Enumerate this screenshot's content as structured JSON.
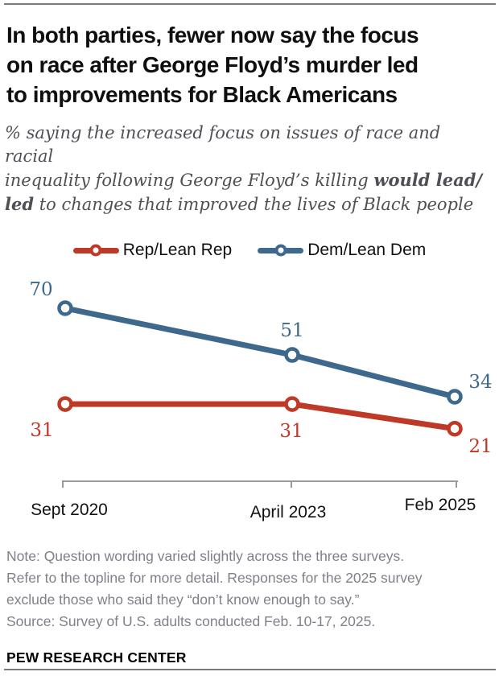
{
  "header": {
    "title_lines": [
      "In both parties, fewer now say the focus",
      "on race after George Floyd’s murder led",
      "to improvements for Black Americans"
    ],
    "subtitle_lines": [
      {
        "segments": [
          {
            "text": "% saying the increased focus on issues of race and racial",
            "bold": false
          }
        ]
      },
      {
        "segments": [
          {
            "text": "inequality following George Floyd’s killing ",
            "bold": false
          },
          {
            "text": "would lead/",
            "bold": true
          }
        ]
      },
      {
        "segments": [
          {
            "text": "led",
            "bold": true
          },
          {
            "text": " to changes that improved the lives of Black people",
            "bold": false
          }
        ]
      }
    ]
  },
  "legend": {
    "items": [
      {
        "label": "Rep/Lean Rep",
        "color": "#bf3927"
      },
      {
        "label": "Dem/Lean Dem",
        "color": "#3e698c"
      }
    ]
  },
  "chart_data": {
    "type": "line",
    "categories": [
      "Sept 2020",
      "April 2023",
      "Feb 2025"
    ],
    "series": [
      {
        "name": "Rep/Lean Rep",
        "color": "#bf3927",
        "values": [
          31,
          31,
          21
        ]
      },
      {
        "name": "Dem/Lean Dem",
        "color": "#3e698c",
        "values": [
          70,
          51,
          34
        ]
      }
    ],
    "ylim": [
      0,
      100
    ],
    "grid": false,
    "legend_position": "top",
    "marker": "open-circle",
    "x_axis_only": true
  },
  "notes": {
    "lines": [
      "Note: Question wording varied slightly across the three surveys.",
      "Refer to the topline for more detail. Responses for the 2025 survey",
      "exclude those who said they “don’t know enough to say.”",
      "Source: Survey of U.S. adults conducted Feb. 10-17, 2025."
    ]
  },
  "brand": {
    "label": "PEW RESEARCH CENTER"
  },
  "colors": {
    "rep": "#bf3927",
    "dem": "#3e698c",
    "axis": "#9a9a9a",
    "rule": "#7a7a7a",
    "tick_label": "#111111",
    "subtitle_text": "#4f4f55",
    "note_text": "#80808a"
  }
}
